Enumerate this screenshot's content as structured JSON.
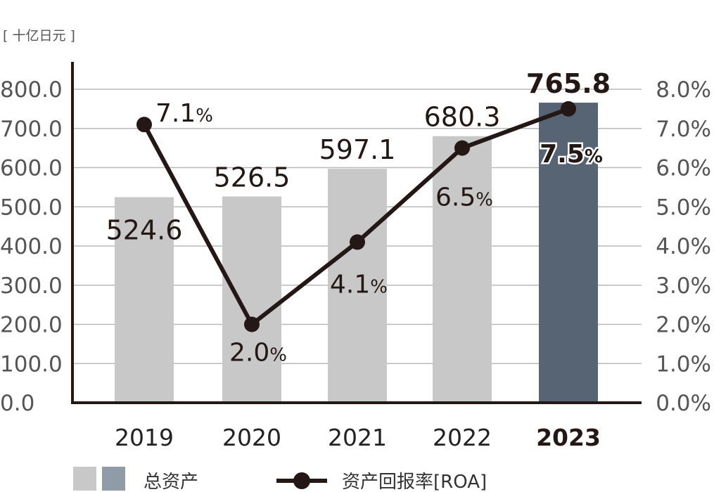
{
  "chart_data": {
    "type": "bar",
    "unit_label": "[ 十亿日元 ]",
    "categories": [
      "2019",
      "2020",
      "2021",
      "2022",
      "2023"
    ],
    "highlight_category": "2023",
    "ylim": [
      0,
      800
    ],
    "y_ticks": [
      "0.0",
      "100.0",
      "200.0",
      "300.0",
      "400.0",
      "500.0",
      "600.0",
      "700.0",
      "800.0"
    ],
    "y2lim": [
      0,
      8
    ],
    "y2_ticks": [
      "0.0%",
      "1.0%",
      "2.0%",
      "3.0%",
      "4.0%",
      "5.0%",
      "6.0%",
      "7.0%",
      "8.0%"
    ],
    "grid": true,
    "series": [
      {
        "name": "总资产",
        "type": "bar",
        "axis": "left",
        "values": [
          524.6,
          526.5,
          597.1,
          680.3,
          765.8
        ],
        "labels": [
          "524.6",
          "526.5",
          "597.1",
          "680.3",
          "765.8"
        ],
        "color": "#c8c8c8",
        "highlight_color": "#566474"
      },
      {
        "name": "资产回报率[ROA]",
        "type": "line",
        "axis": "right",
        "values": [
          7.1,
          2.0,
          4.1,
          6.5,
          7.5
        ],
        "labels": [
          "7.1",
          "2.0",
          "4.1",
          "6.5",
          "7.5"
        ],
        "percent_sign": "%",
        "color": "#231815"
      }
    ],
    "legend": {
      "placement": "bottom",
      "bar_swatch_colors": [
        "#c8c8c8",
        "#8f9ca8"
      ]
    }
  }
}
